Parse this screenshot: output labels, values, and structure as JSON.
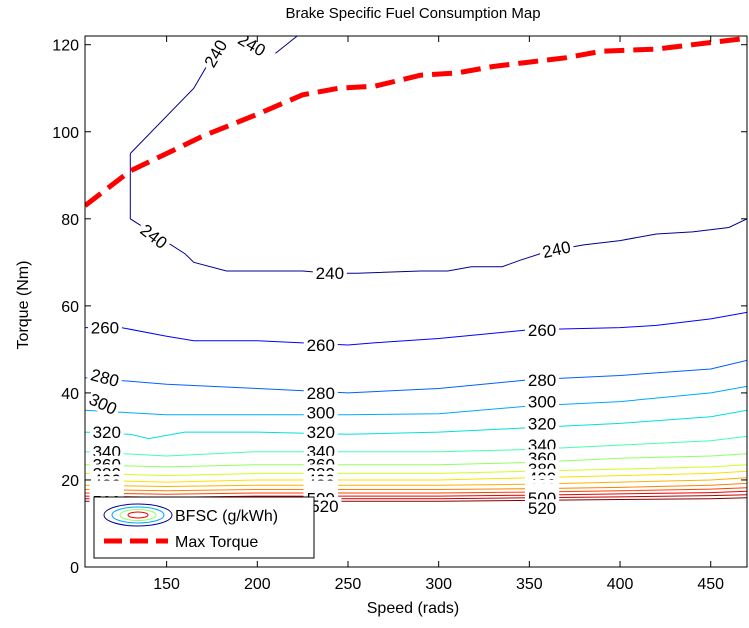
{
  "chart_data": {
    "type": "line",
    "title": "Brake Specific Fuel Consumption Map",
    "xlabel": "Speed (rads)",
    "ylabel": "Torque (Nm)",
    "xlim": [
      105,
      470
    ],
    "ylim": [
      0,
      122
    ],
    "xticks": [
      150,
      200,
      250,
      300,
      350,
      400,
      450
    ],
    "yticks": [
      0,
      20,
      40,
      60,
      80,
      100,
      120
    ],
    "grid": false,
    "legend_location": "bottom-left",
    "legend": [
      {
        "name": "BFSC (g/kWh)",
        "style": "contour"
      },
      {
        "name": "Max Torque",
        "style": "dashed",
        "color": "#ff0000"
      }
    ],
    "max_torque": {
      "name": "Max Torque",
      "color": "#ff0000",
      "x": [
        105,
        130,
        170,
        200,
        225,
        245,
        265,
        290,
        310,
        330,
        350,
        370,
        390,
        420,
        440,
        460,
        470
      ],
      "y": [
        83,
        91,
        99,
        104,
        108.5,
        110,
        110.5,
        113,
        113.5,
        115,
        116,
        117,
        118.5,
        119,
        120,
        121,
        121.5
      ]
    },
    "contours": [
      {
        "level": 240,
        "color": "#00008f",
        "segments": [
          {
            "x": [
              130,
              130,
              160,
              165,
              183,
              225,
              240,
              255,
              290,
              305,
              318,
              335,
              345,
              360,
              380,
              400,
              420,
              440,
              460,
              470
            ],
            "y": [
              95,
              80,
              72,
              70,
              68,
              68,
              67.5,
              67.5,
              68,
              68,
              69,
              69,
              70.5,
              72.5,
              74,
              75,
              76.5,
              77,
              78,
              80
            ]
          },
          {
            "x": [
              130,
              165,
              172,
              180,
              184
            ],
            "y": [
              95,
              110,
              115,
              118,
              120
            ]
          },
          {
            "x": [
              210,
              222
            ],
            "y": [
              118,
              122
            ]
          }
        ],
        "labels": [
          {
            "x": 240,
            "y": 67.5,
            "angle": 0
          },
          {
            "x": 365,
            "y": 73,
            "angle": -12
          },
          {
            "x": 143,
            "y": 76,
            "angle": 38
          },
          {
            "x": 177,
            "y": 118,
            "angle": -60
          },
          {
            "x": 197,
            "y": 120,
            "angle": 30
          }
        ]
      },
      {
        "level": 260,
        "color": "#0000ff",
        "segments": [
          {
            "x": [
              105,
              125,
              150,
              165,
              200,
              250,
              265,
              300,
              350,
              400,
              420,
              450,
              470
            ],
            "y": [
              55,
              55,
              53,
              52,
              52,
              51,
              51.5,
              52.5,
              54.5,
              55,
              55.5,
              57,
              58.5
            ]
          }
        ],
        "labels": [
          {
            "x": 116,
            "y": 55,
            "angle": 0
          },
          {
            "x": 235,
            "y": 51,
            "angle": 0
          },
          {
            "x": 357,
            "y": 54.5,
            "angle": 0
          }
        ]
      },
      {
        "level": 280,
        "color": "#0060ff",
        "segments": [
          {
            "x": [
              105,
              150,
              200,
              250,
              300,
              350,
              400,
              450,
              470
            ],
            "y": [
              43.5,
              42,
              41,
              40,
              41,
              43,
              44,
              45.5,
              47.5
            ]
          }
        ],
        "labels": [
          {
            "x": 116,
            "y": 43.5,
            "angle": 15
          },
          {
            "x": 235,
            "y": 40,
            "angle": 0
          },
          {
            "x": 357,
            "y": 43,
            "angle": 0
          }
        ]
      },
      {
        "level": 300,
        "color": "#00a8ff",
        "segments": [
          {
            "x": [
              105,
              150,
              200,
              250,
              300,
              350,
              400,
              450,
              470
            ],
            "y": [
              36,
              35,
              35,
              35,
              35.2,
              37,
              38,
              40,
              41.5
            ]
          }
        ],
        "labels": [
          {
            "x": 115,
            "y": 37.5,
            "angle": 25
          },
          {
            "x": 235,
            "y": 35.5,
            "angle": 0
          },
          {
            "x": 357,
            "y": 38,
            "angle": 0
          }
        ]
      },
      {
        "level": 320,
        "color": "#00e0e0",
        "segments": [
          {
            "x": [
              105,
              130,
              140,
              160,
              200,
              250,
              300,
              350,
              400,
              450,
              470
            ],
            "y": [
              31,
              30.5,
              29.5,
              31,
              31,
              30.5,
              31,
              32,
              33,
              34.5,
              36
            ]
          }
        ],
        "labels": [
          {
            "x": 117,
            "y": 31,
            "angle": 0
          },
          {
            "x": 235,
            "y": 31,
            "angle": 0
          },
          {
            "x": 357,
            "y": 33,
            "angle": 0
          }
        ]
      },
      {
        "level": 340,
        "color": "#40ffb0",
        "segments": [
          {
            "x": [
              105,
              150,
              200,
              250,
              300,
              350,
              400,
              450,
              470
            ],
            "y": [
              26.5,
              25.5,
              26.5,
              26.5,
              26.5,
              27,
              28,
              29,
              30
            ]
          }
        ],
        "labels": [
          {
            "x": 117,
            "y": 26.5,
            "angle": 0
          },
          {
            "x": 235,
            "y": 26.5,
            "angle": 0
          },
          {
            "x": 357,
            "y": 28,
            "angle": 0
          }
        ]
      },
      {
        "level": 360,
        "color": "#90ff60",
        "segments": [
          {
            "x": [
              105,
              150,
              200,
              250,
              300,
              350,
              400,
              450,
              470
            ],
            "y": [
              23.5,
              23,
              23.5,
              23.5,
              23.5,
              24,
              25,
              25.5,
              26
            ]
          }
        ],
        "labels": [
          {
            "x": 117,
            "y": 23.5,
            "angle": 0
          },
          {
            "x": 235,
            "y": 23.5,
            "angle": 0
          },
          {
            "x": 357,
            "y": 25,
            "angle": 0
          }
        ]
      },
      {
        "level": 380,
        "color": "#d0ff20",
        "segments": [
          {
            "x": [
              105,
              150,
              200,
              250,
              300,
              350,
              400,
              450,
              470
            ],
            "y": [
              21.5,
              21,
              21.5,
              21.5,
              21.5,
              22,
              22.5,
              23,
              23.5
            ]
          }
        ],
        "labels": [
          {
            "x": 117,
            "y": 21.5,
            "angle": 0
          },
          {
            "x": 235,
            "y": 21.5,
            "angle": 0
          },
          {
            "x": 357,
            "y": 22.5,
            "angle": 0
          }
        ]
      },
      {
        "level": 400,
        "color": "#ffe000",
        "segments": [
          {
            "x": [
              105,
              150,
              200,
              250,
              300,
              350,
              400,
              450,
              470
            ],
            "y": [
              20,
              19.5,
              20,
              20,
              20,
              20.5,
              21,
              21.5,
              22
            ]
          }
        ],
        "labels": [
          {
            "x": 117,
            "y": 20,
            "angle": 0
          },
          {
            "x": 235,
            "y": 20,
            "angle": 0
          },
          {
            "x": 357,
            "y": 20.5,
            "angle": 0
          }
        ]
      },
      {
        "level": 420,
        "color": "#ffb000",
        "segments": [
          {
            "x": [
              105,
              150,
              200,
              250,
              300,
              350,
              400,
              450,
              470
            ],
            "y": [
              18.8,
              18.5,
              18.8,
              18.8,
              18.8,
              19,
              19.5,
              20,
              20.5
            ]
          }
        ],
        "labels": [
          {
            "x": 117,
            "y": 18.8,
            "angle": 0
          },
          {
            "x": 235,
            "y": 18.8,
            "angle": 0
          },
          {
            "x": 357,
            "y": 19,
            "angle": 0
          }
        ]
      },
      {
        "level": 440,
        "color": "#ff8000",
        "segments": [
          {
            "x": [
              105,
              150,
              200,
              250,
              300,
              350,
              400,
              450,
              470
            ],
            "y": [
              17.8,
              17.5,
              17.8,
              17.8,
              17.8,
              18,
              18.3,
              18.8,
              19.2
            ]
          }
        ],
        "labels": [
          {
            "x": 117,
            "y": 17.8,
            "angle": 0
          },
          {
            "x": 235,
            "y": 17.8,
            "angle": 0
          },
          {
            "x": 357,
            "y": 18,
            "angle": 0
          }
        ]
      },
      {
        "level": 460,
        "color": "#ff4000",
        "segments": [
          {
            "x": [
              105,
              150,
              200,
              250,
              300,
              350,
              400,
              450,
              470
            ],
            "y": [
              17,
              16.7,
              17,
              17,
              17,
              17.2,
              17.5,
              17.9,
              18.2
            ]
          }
        ],
        "labels": [
          {
            "x": 117,
            "y": 17,
            "angle": 0
          },
          {
            "x": 235,
            "y": 17,
            "angle": 0
          },
          {
            "x": 357,
            "y": 17.2,
            "angle": 0
          }
        ]
      },
      {
        "level": 480,
        "color": "#f00000",
        "segments": [
          {
            "x": [
              105,
              150,
              200,
              250,
              300,
              350,
              400,
              450,
              470
            ],
            "y": [
              16.3,
              16,
              16.3,
              16.3,
              16.3,
              16.5,
              16.8,
              17.1,
              17.4
            ]
          }
        ],
        "labels": [
          {
            "x": 117,
            "y": 16.3,
            "angle": 0
          },
          {
            "x": 235,
            "y": 16.3,
            "angle": 0
          },
          {
            "x": 357,
            "y": 16.5,
            "angle": 0
          }
        ]
      },
      {
        "level": 500,
        "color": "#c00000",
        "segments": [
          {
            "x": [
              105,
              150,
              200,
              250,
              300,
              350,
              400,
              450,
              470
            ],
            "y": [
              15.7,
              15.5,
              15.7,
              15.7,
              15.7,
              15.9,
              16.1,
              16.4,
              16.6
            ]
          }
        ],
        "labels": [
          {
            "x": 117,
            "y": 15.7,
            "angle": 0
          },
          {
            "x": 235,
            "y": 15.7,
            "angle": 0
          },
          {
            "x": 357,
            "y": 15.9,
            "angle": 0
          }
        ]
      },
      {
        "level": 520,
        "color": "#800000",
        "segments": [
          {
            "x": [
              105,
              150,
              200,
              250,
              300,
              350,
              400,
              450,
              470
            ],
            "y": [
              15.1,
              15,
              15.1,
              15.1,
              15.1,
              15.3,
              15.5,
              15.7,
              15.9
            ]
          }
        ],
        "labels": [
          {
            "x": 117,
            "y": 15.1,
            "angle": 0
          },
          {
            "x": 237,
            "y": 14,
            "angle": 0
          },
          {
            "x": 357,
            "y": 13.5,
            "angle": 0
          }
        ]
      }
    ]
  }
}
